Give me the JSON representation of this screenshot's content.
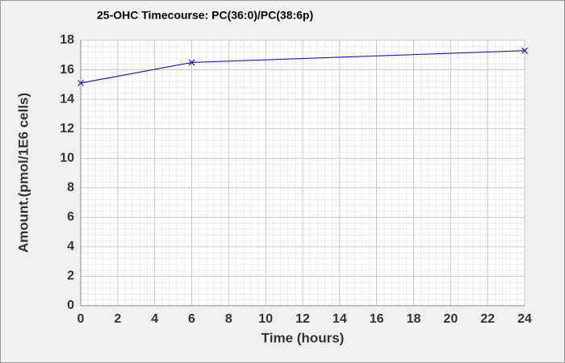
{
  "chart_data": {
    "type": "line",
    "title": "25-OHC Timecourse: PC(36:0)/PC(38:6p)",
    "x_label": "Time (hours)",
    "y_label": "Amount.(pmol/1E6 cells)",
    "x": [
      0,
      6,
      24
    ],
    "series": [
      {
        "name": "PC(36:0)/PC(38:6p)",
        "color": "#1a1acc",
        "marker": "x",
        "values": [
          15.1,
          16.5,
          17.3
        ]
      }
    ],
    "xlim": [
      0,
      24
    ],
    "xticks": [
      0,
      2,
      4,
      6,
      8,
      10,
      12,
      14,
      16,
      18,
      20,
      22,
      24
    ],
    "ylim": [
      0,
      18
    ],
    "yticks": [
      0,
      2,
      4,
      6,
      8,
      10,
      12,
      14,
      16,
      18
    ],
    "grid": true,
    "minor_grid": 5
  }
}
